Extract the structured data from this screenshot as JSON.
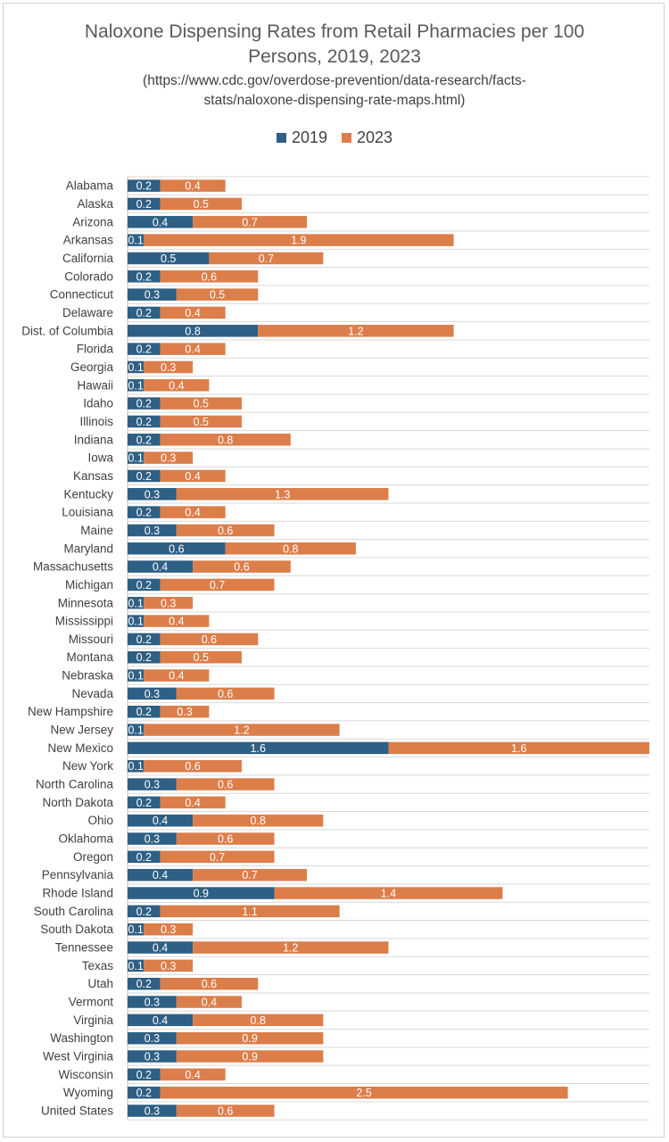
{
  "chart_data": {
    "type": "bar",
    "orientation": "horizontal",
    "stacked": true,
    "title_lines": [
      "Naloxone Dispensing Rates from Retail Pharmacies per 100",
      "Persons, 2019, 2023"
    ],
    "subtitle_lines": [
      "(https://www.cdc.gov/overdose-prevention/data-research/facts-",
      "stats/naloxone-dispensing-rate-maps.html)"
    ],
    "legend_position": "top",
    "grid": true,
    "xlim": [
      0,
      3.2
    ],
    "categories": [
      "Alabama",
      "Alaska",
      "Arizona",
      "Arkansas",
      "California",
      "Colorado",
      "Connecticut",
      "Delaware",
      "Dist. of Columbia",
      "Florida",
      "Georgia",
      "Hawaii",
      "Idaho",
      "Illinois",
      "Indiana",
      "Iowa",
      "Kansas",
      "Kentucky",
      "Louisiana",
      "Maine",
      "Maryland",
      "Massachusetts",
      "Michigan",
      "Minnesota",
      "Mississippi",
      "Missouri",
      "Montana",
      "Nebraska",
      "Nevada",
      "New Hampshire",
      "New Jersey",
      "New Mexico",
      "New York",
      "North Carolina",
      "North Dakota",
      "Ohio",
      "Oklahoma",
      "Oregon",
      "Pennsylvania",
      "Rhode Island",
      "South Carolina",
      "South Dakota",
      "Tennessee",
      "Texas",
      "Utah",
      "Vermont",
      "Virginia",
      "Washington",
      "West Virginia",
      "Wisconsin",
      "Wyoming",
      "United States"
    ],
    "series": [
      {
        "name": "2019",
        "color": "#2e5f84",
        "values": [
          0.2,
          0.2,
          0.4,
          0.1,
          0.5,
          0.2,
          0.3,
          0.2,
          0.8,
          0.2,
          0.1,
          0.1,
          0.2,
          0.2,
          0.2,
          0.1,
          0.2,
          0.3,
          0.2,
          0.3,
          0.6,
          0.4,
          0.2,
          0.1,
          0.1,
          0.2,
          0.2,
          0.1,
          0.3,
          0.2,
          0.1,
          1.6,
          0.1,
          0.3,
          0.2,
          0.4,
          0.3,
          0.2,
          0.4,
          0.9,
          0.2,
          0.1,
          0.4,
          0.1,
          0.2,
          0.3,
          0.4,
          0.3,
          0.3,
          0.2,
          0.2,
          0.3
        ]
      },
      {
        "name": "2023",
        "color": "#dc7e4a",
        "values": [
          0.4,
          0.5,
          0.7,
          1.9,
          0.7,
          0.6,
          0.5,
          0.4,
          1.2,
          0.4,
          0.3,
          0.4,
          0.5,
          0.5,
          0.8,
          0.3,
          0.4,
          1.3,
          0.4,
          0.6,
          0.8,
          0.6,
          0.7,
          0.3,
          0.4,
          0.6,
          0.5,
          0.4,
          0.6,
          0.3,
          1.2,
          1.6,
          0.6,
          0.6,
          0.4,
          0.8,
          0.6,
          0.7,
          0.7,
          1.4,
          1.1,
          0.3,
          1.2,
          0.3,
          0.6,
          0.4,
          0.8,
          0.9,
          0.9,
          0.4,
          2.5,
          0.6
        ]
      }
    ]
  }
}
